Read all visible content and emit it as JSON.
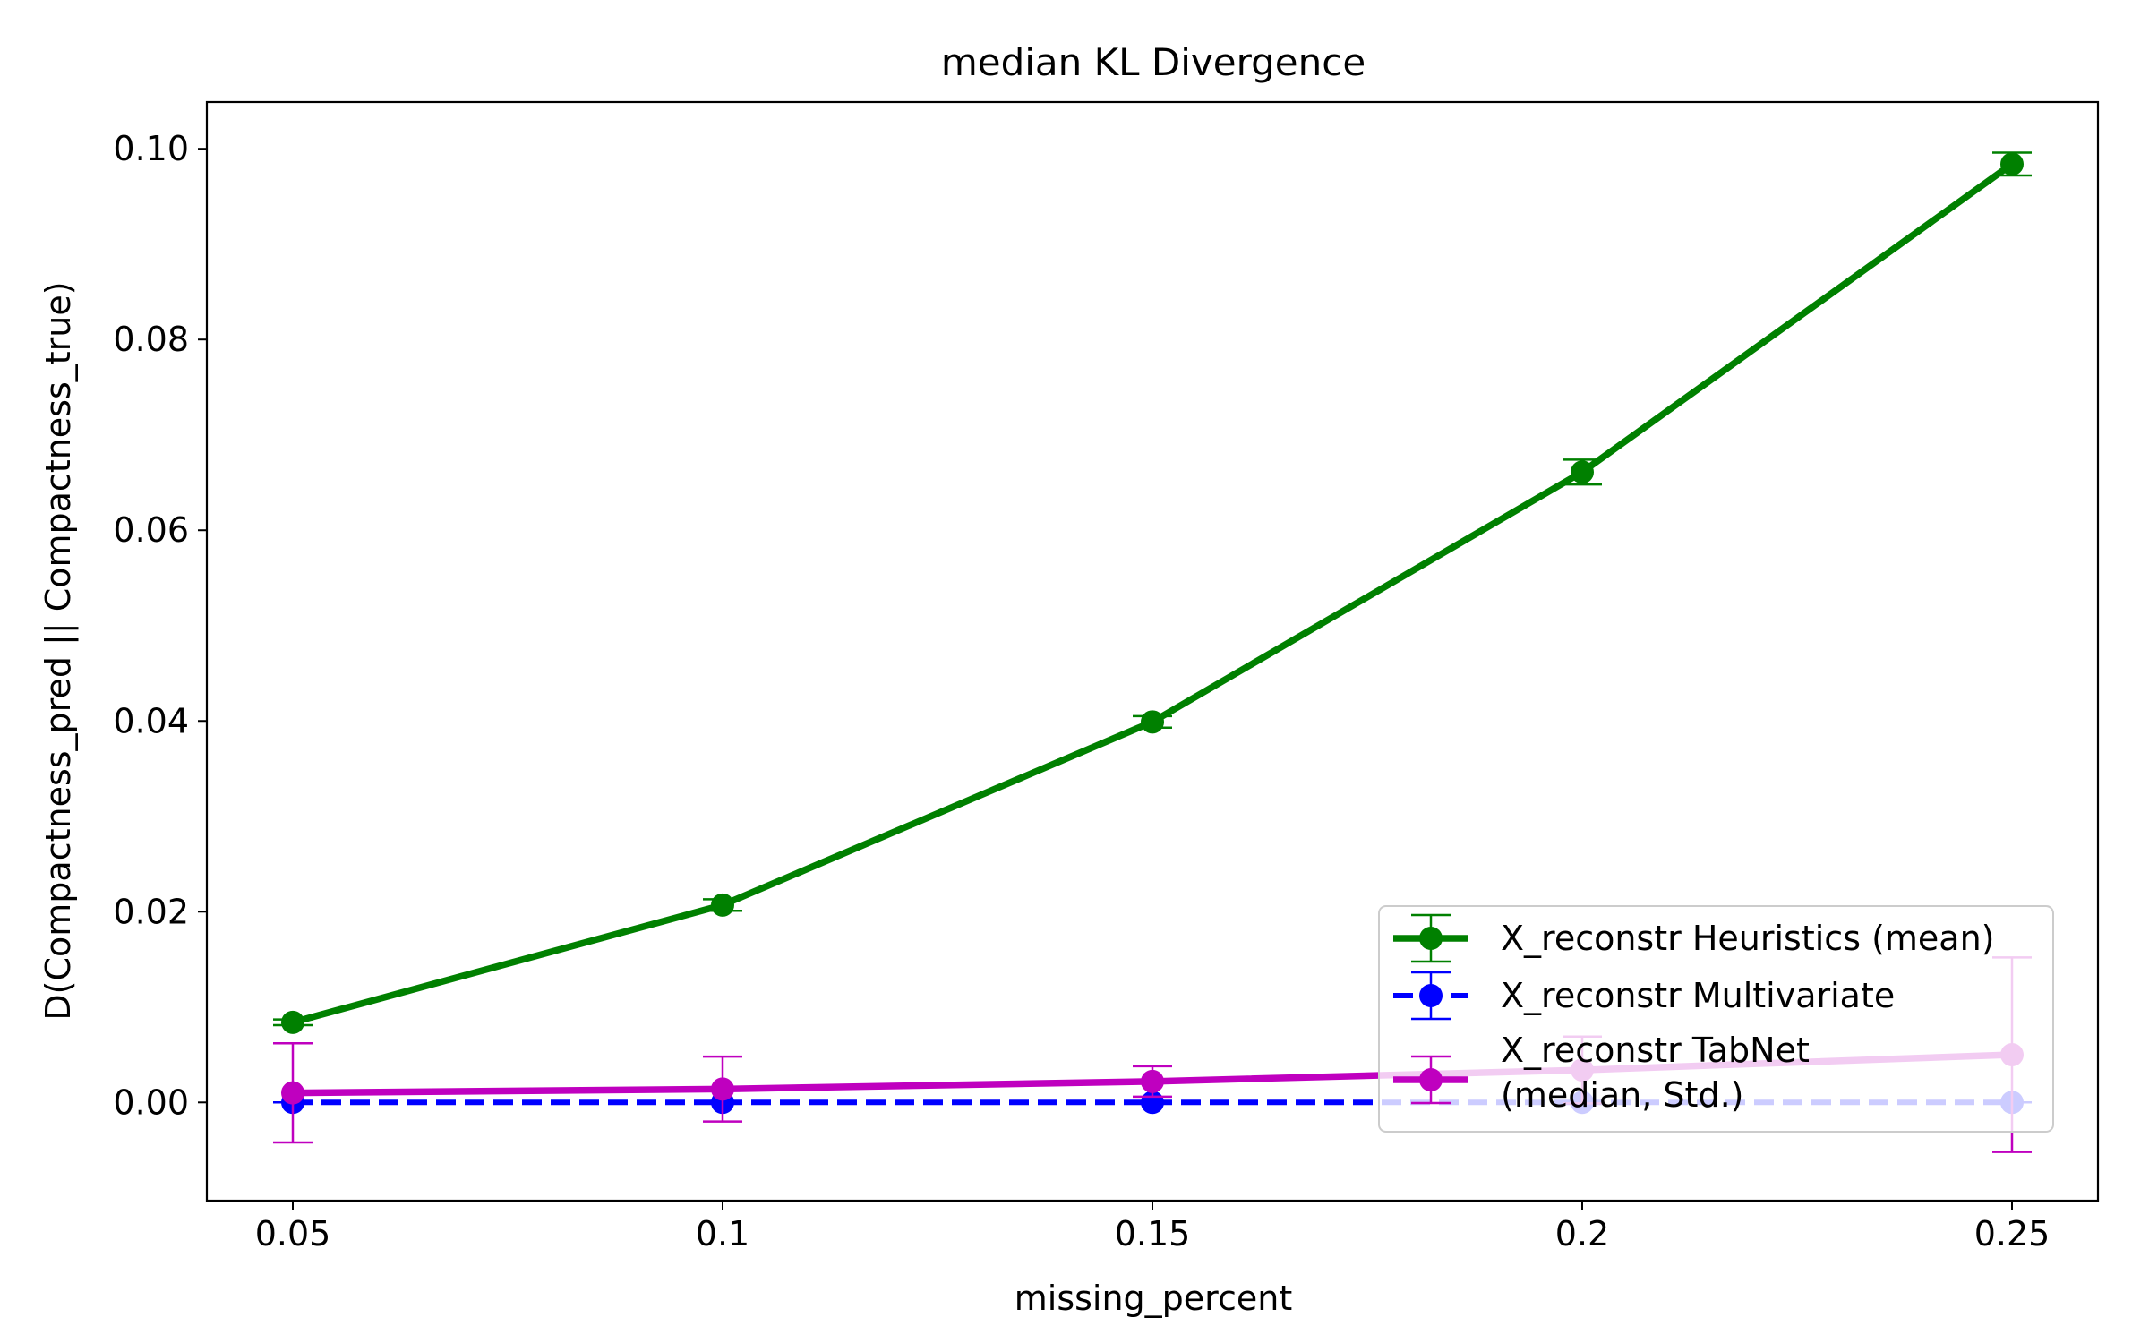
{
  "chart_data": {
    "type": "line",
    "title": "median KL Divergence",
    "xlabel": "missing_percent",
    "ylabel": "D(Compactness_pred || Compactness_true)",
    "x": [
      0.05,
      0.1,
      0.15,
      0.2,
      0.25
    ],
    "x_tick_labels": [
      "0.05",
      "0.1",
      "0.15",
      "0.2",
      "0.25"
    ],
    "xlim": [
      0.04,
      0.26
    ],
    "ylim": [
      -0.0103,
      0.1049
    ],
    "y_ticks": [
      0.0,
      0.02,
      0.04,
      0.06,
      0.08,
      0.1
    ],
    "y_tick_labels": [
      "0.00",
      "0.02",
      "0.04",
      "0.06",
      "0.08",
      "0.10"
    ],
    "grid": false,
    "legend_position": "lower-right",
    "series": [
      {
        "name": "X_reconstr Heuristics (mean)",
        "color": "#008000",
        "dashed": false,
        "line_weight": "thick",
        "values": [
          0.0084,
          0.0207,
          0.0399,
          0.0661,
          0.0984
        ],
        "errors": [
          0.0003,
          0.0006,
          0.0006,
          0.0013,
          0.0012
        ]
      },
      {
        "name": "X_reconstr Multivariate",
        "color": "#0000ff",
        "dashed": true,
        "line_weight": "medium",
        "values": [
          0.0,
          0.0,
          0.0,
          0.0,
          0.0
        ],
        "errors": [
          0.0,
          0.0,
          0.0,
          0.0,
          0.0
        ]
      },
      {
        "name": "X_reconstr TabNet\n(median, Std.)",
        "color": "#bf00bf",
        "dashed": false,
        "line_weight": "thick",
        "values": [
          0.001,
          0.0014,
          0.0022,
          0.0034,
          0.005
        ],
        "errors": [
          0.0052,
          0.0034,
          0.0016,
          0.0035,
          0.0102
        ]
      }
    ]
  }
}
